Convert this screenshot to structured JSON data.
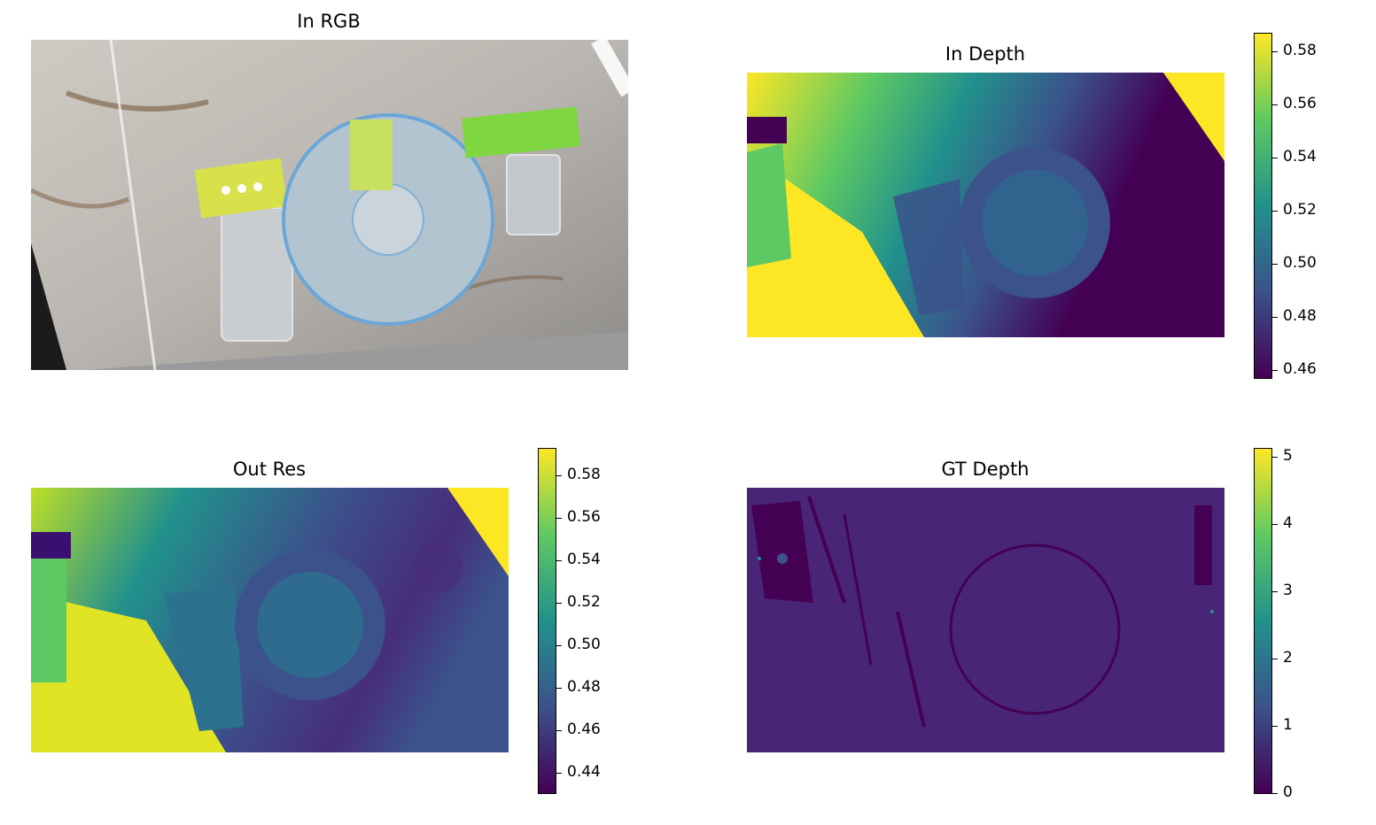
{
  "panels": {
    "rgb": {
      "title": "In RGB"
    },
    "in_depth": {
      "title": "In Depth",
      "colorbar_ticks": [
        "0.58",
        "0.56",
        "0.54",
        "0.52",
        "0.50",
        "0.48",
        "0.46"
      ]
    },
    "out_res": {
      "title": "Out Res",
      "colorbar_ticks": [
        "0.58",
        "0.56",
        "0.54",
        "0.52",
        "0.50",
        "0.48",
        "0.46",
        "0.44"
      ]
    },
    "gt_depth": {
      "title": "GT Depth",
      "colorbar_ticks": [
        "5",
        "4",
        "3",
        "2",
        "1",
        "0"
      ]
    }
  },
  "colormap": "viridis",
  "colors": {
    "viridis_top": "#fde725",
    "viridis_mid": "#21918c",
    "viridis_low": "#3b528b",
    "viridis_bottom": "#440154"
  }
}
